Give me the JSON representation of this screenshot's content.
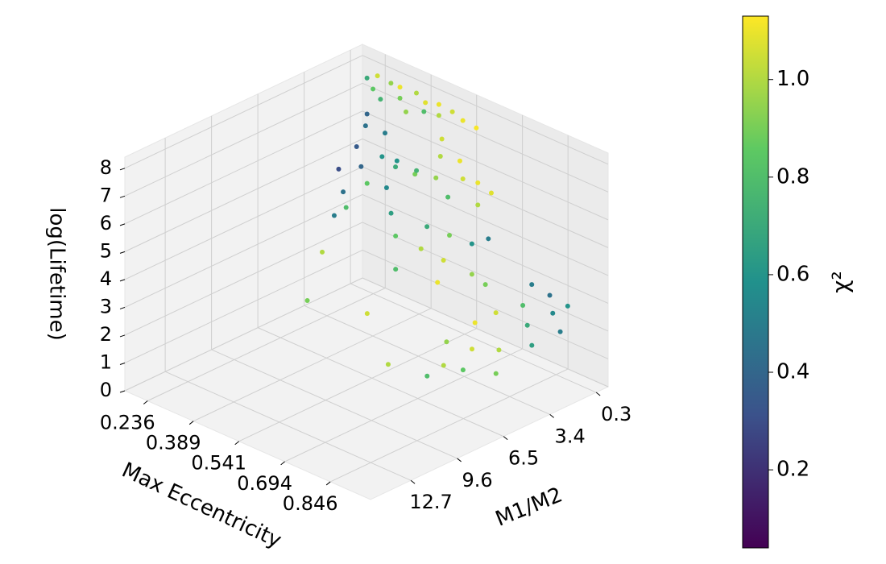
{
  "chart_data": {
    "type": "scatter3d",
    "xlabel": "Max Eccentricity",
    "ylabel": "M1/M2",
    "zlabel": "log(Lifetime)",
    "xlim": [
      0.16,
      0.98
    ],
    "ylim": [
      -0.5,
      15.4
    ],
    "zlim": [
      0,
      8.4
    ],
    "xticks": [
      0.236,
      0.389,
      0.541,
      0.694,
      0.846
    ],
    "yticks": [
      0.3,
      3.4,
      6.5,
      9.6,
      12.7
    ],
    "zticks": [
      0,
      1,
      2,
      3,
      4,
      5,
      6,
      7,
      8
    ],
    "grid": true,
    "colormap": "viridis",
    "colorbar": {
      "label": "χ²",
      "lim": [
        0.04,
        1.13
      ],
      "ticks": [
        0.2,
        0.4,
        0.6,
        0.8,
        {
          "value": 1.0,
          "label": "1.0"
        }
      ]
    },
    "points": {
      "x": [
        0.26,
        0.3,
        0.34,
        0.38,
        0.42,
        0.46,
        0.5,
        0.54,
        0.58,
        0.28,
        0.32,
        0.36,
        0.4,
        0.44,
        0.24,
        0.48,
        0.32,
        0.34,
        0.36,
        0.38,
        0.4,
        0.33,
        0.42,
        0.37,
        0.44,
        0.46,
        0.35,
        0.48,
        0.3,
        0.39,
        0.5,
        0.52,
        0.55,
        0.53,
        0.58,
        0.6,
        0.56,
        0.62,
        0.49,
        0.64,
        0.55,
        0.6,
        0.58,
        0.65,
        0.63,
        0.68,
        0.52,
        0.7,
        0.66,
        0.57,
        0.8,
        0.85,
        0.88,
        0.9,
        0.82,
        0.86,
        0.78,
        0.76,
        0.8,
        0.84,
        0.74,
        0.9,
        0.92,
        0.72,
        0.82,
        0.78,
        0.88,
        0.75,
        0.3,
        0.4,
        0.5,
        0.28,
        0.62,
        0.35
      ],
      "y": [
        0.5,
        0.4,
        0.6,
        0.3,
        0.5,
        0.4,
        0.3,
        0.4,
        0.3,
        1.2,
        1.5,
        1.0,
        1.4,
        1.0,
        0.8,
        0.8,
        2.5,
        3.5,
        2.0,
        4.0,
        3.0,
        4.5,
        2.5,
        5.0,
        3.5,
        2.0,
        3.0,
        4.0,
        2.0,
        6.0,
        1.0,
        1.5,
        0.8,
        2.0,
        1.2,
        0.6,
        1.8,
        1.0,
        2.5,
        0.5,
        3.0,
        2.5,
        4.0,
        2.0,
        3.5,
        1.5,
        4.5,
        3.0,
        4.5,
        5.5,
        1.0,
        0.8,
        1.2,
        0.6,
        2.0,
        2.5,
        3.0,
        4.0,
        5.0,
        4.0,
        5.5,
        3.0,
        1.5,
        2.5,
        6.0,
        6.5,
        5.0,
        7.0,
        5.0,
        8.0,
        6.0,
        3.0,
        7.0,
        1.0
      ],
      "z": [
        8.0,
        7.9,
        8.0,
        7.9,
        7.8,
        7.9,
        7.8,
        7.7,
        7.6,
        7.8,
        7.7,
        7.8,
        7.6,
        7.7,
        7.9,
        7.7,
        7.0,
        6.6,
        6.8,
        6.2,
        6.4,
        6.0,
        6.0,
        5.5,
        5.6,
        5.8,
        5.2,
        5.0,
        7.2,
        5.0,
        7.0,
        6.6,
        6.4,
        6.0,
        6.0,
        5.8,
        5.4,
        5.2,
        6.2,
        5.6,
        4.6,
        4.4,
        4.2,
        4.2,
        3.9,
        4.4,
        4.5,
        3.6,
        3.5,
        3.8,
        3.2,
        3.0,
        2.6,
        2.8,
        2.8,
        2.4,
        2.6,
        2.4,
        1.9,
        1.8,
        2.0,
        2.0,
        2.2,
        3.2,
        1.5,
        1.6,
        1.4,
        1.2,
        3.0,
        2.5,
        2.0,
        4.0,
        1.0,
        5.5
      ],
      "c": [
        1.05,
        0.95,
        1.1,
        1.0,
        1.08,
        1.1,
        1.05,
        1.1,
        1.12,
        0.85,
        0.75,
        0.9,
        0.95,
        0.8,
        0.7,
        1.0,
        0.45,
        0.35,
        0.5,
        0.4,
        0.6,
        0.3,
        0.7,
        0.45,
        0.55,
        0.9,
        0.85,
        0.65,
        0.4,
        0.5,
        1.05,
        1.0,
        1.1,
        0.95,
        1.05,
        1.1,
        0.8,
        1.0,
        0.75,
        1.08,
        0.7,
        0.9,
        1.0,
        0.6,
        1.05,
        0.5,
        0.85,
        0.95,
        1.1,
        0.8,
        0.5,
        0.45,
        0.55,
        0.6,
        0.8,
        0.7,
        1.05,
        1.1,
        1.05,
        1.0,
        0.95,
        0.65,
        0.5,
        0.9,
        0.85,
        1.0,
        0.9,
        0.8,
        1.0,
        0.9,
        1.05,
        0.8,
        1.0,
        0.6
      ]
    }
  }
}
